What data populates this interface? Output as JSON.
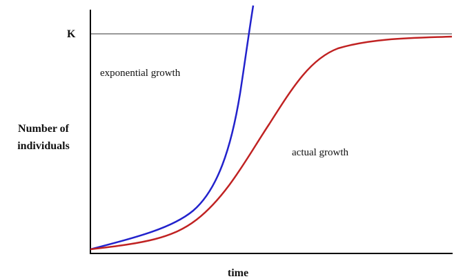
{
  "k_label": "K",
  "curves": {
    "exponential": {
      "label": "exponential growth"
    },
    "actual": {
      "label": "actual growth"
    }
  },
  "y_axis_label": {
    "lines": [
      "Number of",
      "individuals"
    ]
  },
  "x_axis_label": "time"
}
